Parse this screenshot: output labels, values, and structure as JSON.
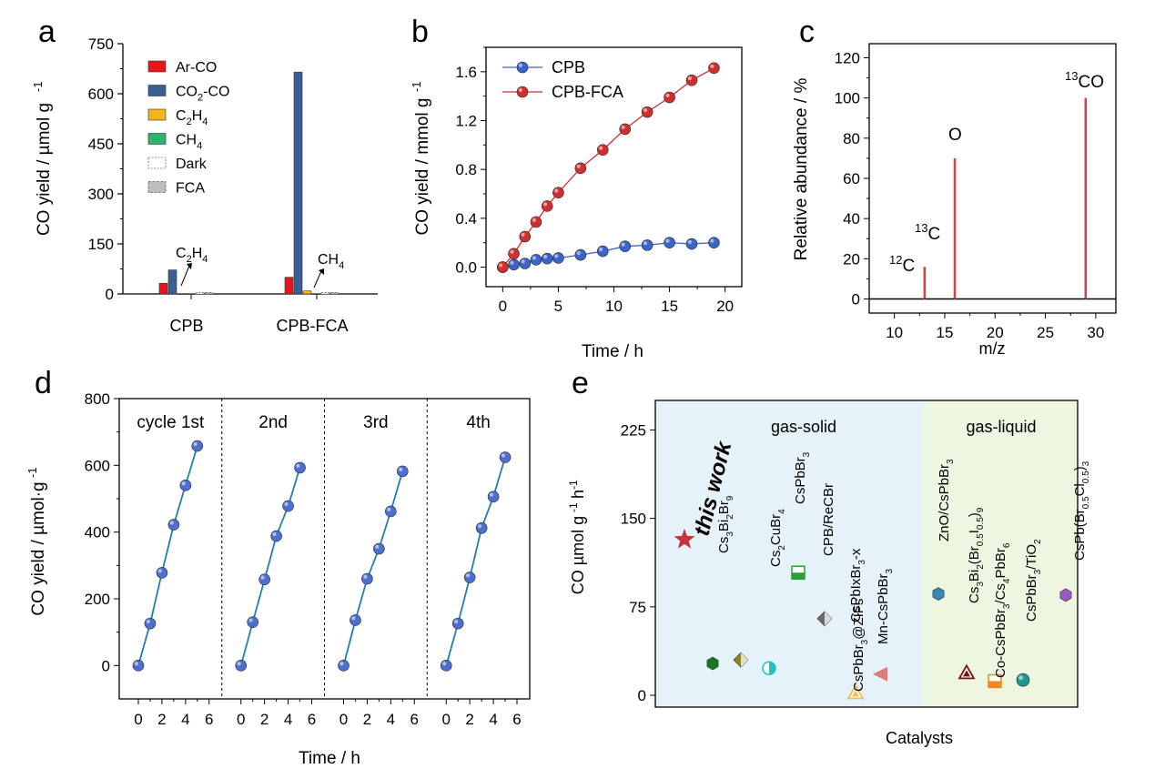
{
  "chart_data": [
    {
      "panel": "a",
      "type": "bar",
      "ylabel": "CO yield / µmol g-1",
      "ylim": [
        0,
        750
      ],
      "yticks": [
        0,
        150,
        300,
        450,
        600,
        750
      ],
      "categories": [
        "CPB",
        "CPB-FCA"
      ],
      "series": [
        {
          "name": "Ar-CO",
          "color": "#e8151b",
          "values": [
            32,
            50
          ]
        },
        {
          "name": "CO2-CO",
          "color": "#3a5f95",
          "values": [
            72,
            665
          ]
        },
        {
          "name": "C2H4",
          "color": "#f2b51b",
          "values": [
            0,
            9
          ]
        },
        {
          "name": "CH4",
          "color": "#2db36a",
          "values": [
            0,
            0
          ]
        },
        {
          "name": "Dark",
          "color": "#ffffff",
          "values": [
            4,
            4
          ]
        },
        {
          "name": "FCA",
          "color": "#bdbdbd",
          "values": [
            4,
            4
          ]
        }
      ],
      "legend": {
        "position": "top-left",
        "labels": [
          "Ar-CO",
          "CO2-CO",
          "C2H4",
          "CH4",
          "Dark",
          "FCA"
        ]
      },
      "annotations": [
        "C2H4",
        "CH4"
      ]
    },
    {
      "panel": "b",
      "type": "line",
      "xlabel": "Time / h",
      "ylabel": "CO yield / mmol g-1",
      "xlim": [
        -1.5,
        21.5
      ],
      "ylim": [
        -0.16,
        1.8
      ],
      "xticks": [
        0,
        5,
        10,
        15,
        20
      ],
      "yticks": [
        0.0,
        0.4,
        0.8,
        1.2,
        1.6
      ],
      "series": [
        {
          "name": "CPB",
          "color": "#3b63c8",
          "x": [
            0,
            1,
            2,
            3,
            4,
            5,
            7,
            9,
            11,
            13,
            15,
            17,
            19
          ],
          "y": [
            0.0,
            0.02,
            0.03,
            0.06,
            0.07,
            0.075,
            0.1,
            0.13,
            0.17,
            0.18,
            0.2,
            0.19,
            0.2
          ]
        },
        {
          "name": "CPB-FCA",
          "color": "#cf2f2f",
          "x": [
            0,
            1,
            2,
            3,
            4,
            5,
            7,
            9,
            11,
            13,
            15,
            17,
            19
          ],
          "y": [
            0.0,
            0.11,
            0.25,
            0.37,
            0.5,
            0.61,
            0.81,
            0.96,
            1.13,
            1.27,
            1.39,
            1.53,
            1.63
          ]
        }
      ],
      "legend": {
        "position": "top-left",
        "labels": [
          "CPB",
          "CPB-FCA"
        ]
      }
    },
    {
      "panel": "c",
      "type": "bar",
      "xlabel": "m/z",
      "ylabel": "Relative abundance / %",
      "xlim": [
        7.5,
        32
      ],
      "ylim": [
        -7,
        127
      ],
      "xticks": [
        10,
        15,
        20,
        25,
        30
      ],
      "yticks": [
        0,
        20,
        40,
        60,
        80,
        100,
        120
      ],
      "x": [
        13,
        16,
        29
      ],
      "values": [
        16,
        70,
        100
      ],
      "labels": [
        "13C",
        "O",
        "13CO"
      ],
      "annotations": [
        "12C",
        "13C",
        "O",
        "13CO"
      ]
    },
    {
      "panel": "d",
      "type": "line",
      "xlabel": "Time / h",
      "ylabel": "CO yield / µmol·g-1",
      "ylim": [
        -100,
        800
      ],
      "yticks": [
        0,
        200,
        400,
        600,
        800
      ],
      "xticks": [
        0,
        2,
        4,
        6
      ],
      "cycles": [
        {
          "label": "cycle 1st",
          "x": [
            0,
            1,
            2,
            3,
            4,
            5
          ],
          "y": [
            0,
            126,
            278,
            422,
            540,
            658
          ]
        },
        {
          "label": "2nd",
          "x": [
            0,
            1,
            2,
            3,
            4,
            5
          ],
          "y": [
            0,
            130,
            258,
            388,
            478,
            593
          ]
        },
        {
          "label": "3rd",
          "x": [
            0,
            1,
            2,
            3,
            4,
            5
          ],
          "y": [
            0,
            136,
            260,
            350,
            462,
            582
          ]
        },
        {
          "label": "4th",
          "x": [
            0,
            1,
            2,
            3,
            4,
            5
          ],
          "y": [
            0,
            126,
            264,
            412,
            506,
            624
          ]
        }
      ],
      "color": "#1f7faf",
      "marker_color": "#4f6fd0"
    },
    {
      "panel": "e",
      "type": "scatter",
      "xlabel": "Catalysts",
      "ylabel": "CO µmol g-1 h-1",
      "ylim": [
        -10,
        250
      ],
      "yticks": [
        0,
        75,
        150,
        225
      ],
      "regions": [
        {
          "label": "gas-solid",
          "color": "#e6f2f9"
        },
        {
          "label": "gas-liquid",
          "color": "#edf6e1"
        }
      ],
      "points": [
        {
          "label": "this work",
          "y": 132,
          "color": "#c9333a",
          "marker": "star"
        },
        {
          "label": "Cs3Bi2Br9",
          "y": 27,
          "color": "#157a1f",
          "marker": "hexagon"
        },
        {
          "label": "Cs2CuBr4",
          "y": 30,
          "color": "#8a8a18",
          "marker": "diamond"
        },
        {
          "label": "CsPbBr3",
          "y": 23,
          "color": "#21c2c4",
          "marker": "half-circle"
        },
        {
          "label": "CPB/ReCBr",
          "y": 104,
          "color": "#2aa135",
          "marker": "square"
        },
        {
          "label": "CsPbIxBr3-x",
          "y": 65,
          "color": "#6b6b6b",
          "marker": "diamond"
        },
        {
          "label": "CsPbBr3@ZIFs",
          "y": 2,
          "color": "#efc056",
          "marker": "triangle"
        },
        {
          "label": "Mn-CsPbBr3",
          "y": 18,
          "color": "#e07b7b",
          "marker": "triangle-left"
        },
        {
          "label": "ZnO/CsPbBr3",
          "y": 86,
          "color": "#3a86b4",
          "marker": "hexagon"
        },
        {
          "label": "Cs3Bi2(Br0.5I0.5)9",
          "y": 19,
          "color": "#7a1111",
          "marker": "triangle"
        },
        {
          "label": "Co-CsPbBr3/Cs4PbBr6",
          "y": 12,
          "color": "#f08a1e",
          "marker": "square"
        },
        {
          "label": "CsPbBr3/TiO2",
          "y": 13,
          "color": "#1d9a8c",
          "marker": "circle"
        },
        {
          "label": "CsPb(Br0.5Cl0.5)3",
          "y": 85,
          "color": "#9a5bbf",
          "marker": "hexagon"
        }
      ]
    }
  ],
  "panel_labels": [
    "a",
    "b",
    "c",
    "d",
    "e"
  ]
}
